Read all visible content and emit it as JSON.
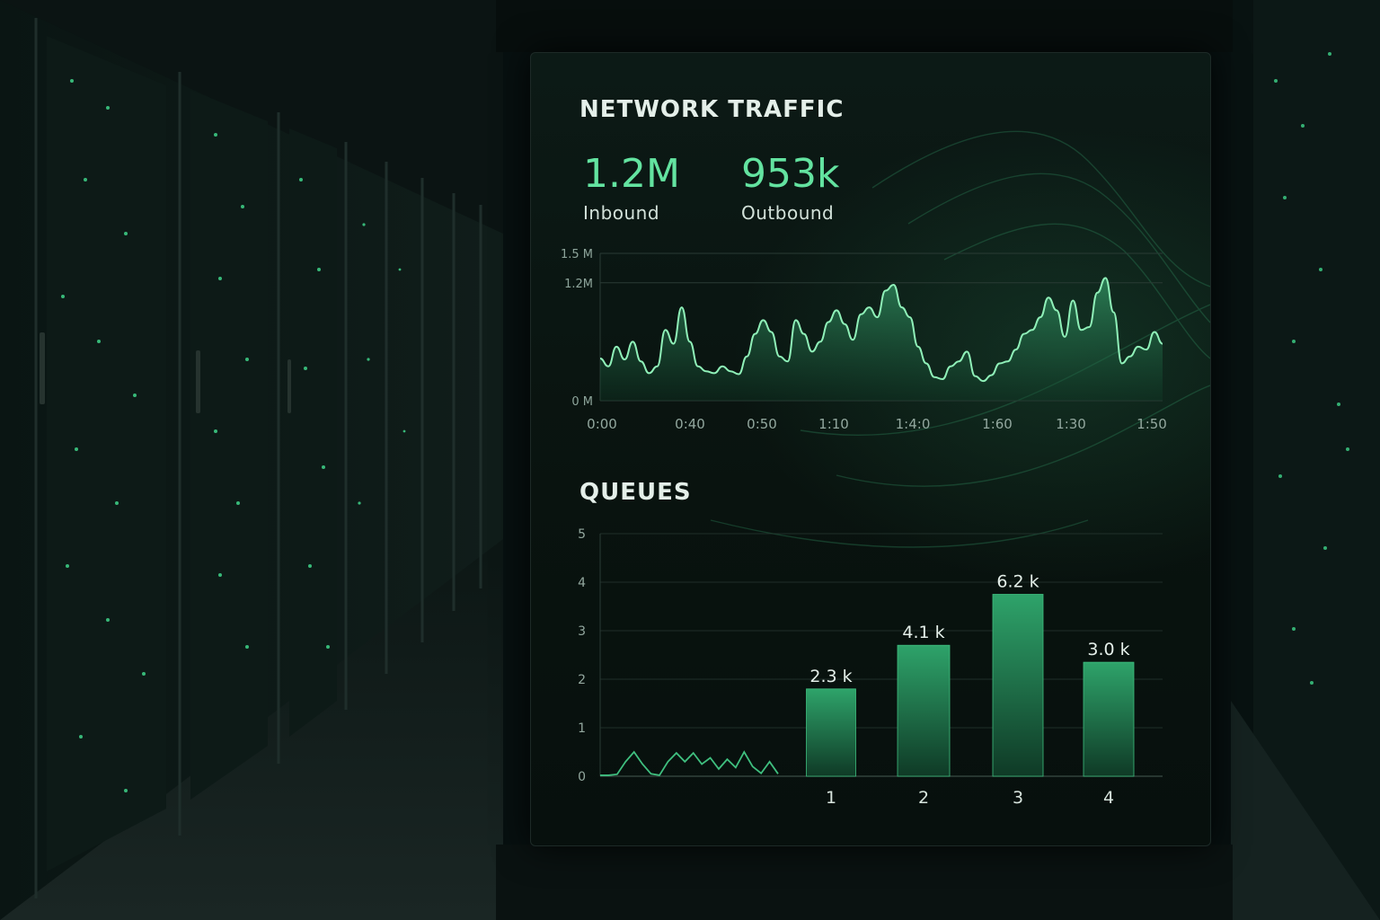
{
  "network": {
    "title": "NETWORK TRAFFIC",
    "inbound": {
      "value": "1.2M",
      "label": "Inbound"
    },
    "outbound": {
      "value": "953k",
      "label": "Outbound"
    }
  },
  "queues": {
    "title": "QUEUES"
  },
  "colors": {
    "accent": "#63e3a0",
    "line": "#8ff0b8",
    "bar_top": "#2ea36a",
    "bar_bottom": "#0f3a26",
    "grid": "#2a3b35"
  },
  "chart_data": [
    {
      "type": "area",
      "ylim": [
        0,
        1.5
      ],
      "y_ticks": [
        {
          "value": 0,
          "label": "0 M"
        },
        {
          "value": 1.2,
          "label": "1.2M"
        },
        {
          "value": 1.5,
          "label": "1.5 M"
        }
      ],
      "x_ticks": [
        "0:00",
        "0:40",
        "0:50",
        "1:10",
        "1:4:0",
        "1:60",
        "1:30",
        "1:50"
      ],
      "grid": true,
      "values": [
        0.43,
        0.35,
        0.55,
        0.42,
        0.6,
        0.4,
        0.28,
        0.35,
        0.72,
        0.58,
        0.95,
        0.6,
        0.35,
        0.3,
        0.28,
        0.35,
        0.3,
        0.27,
        0.45,
        0.68,
        0.82,
        0.7,
        0.45,
        0.4,
        0.82,
        0.68,
        0.5,
        0.6,
        0.8,
        0.92,
        0.78,
        0.62,
        0.88,
        0.95,
        0.85,
        1.12,
        1.18,
        0.95,
        0.85,
        0.55,
        0.38,
        0.24,
        0.22,
        0.35,
        0.4,
        0.5,
        0.25,
        0.2,
        0.26,
        0.38,
        0.4,
        0.52,
        0.68,
        0.72,
        0.85,
        1.05,
        0.92,
        0.65,
        1.02,
        0.72,
        0.75,
        1.1,
        1.25,
        0.9,
        0.38,
        0.45,
        0.55,
        0.52,
        0.7,
        0.58
      ]
    },
    {
      "type": "bar",
      "ylim": [
        0,
        5
      ],
      "y_ticks": [
        0,
        1,
        2,
        3,
        4,
        5
      ],
      "categories": [
        "1",
        "2",
        "3",
        "4"
      ],
      "values": [
        1.8,
        2.7,
        3.75,
        2.35
      ],
      "data_labels": [
        "2.3 k",
        "4.1 k",
        "6.2 k",
        "3.0 k"
      ],
      "sparkline": [
        0.02,
        0.02,
        0.04,
        0.3,
        0.5,
        0.25,
        0.05,
        0.02,
        0.3,
        0.48,
        0.3,
        0.48,
        0.25,
        0.38,
        0.15,
        0.35,
        0.18,
        0.5,
        0.2,
        0.06,
        0.3,
        0.05
      ]
    }
  ]
}
